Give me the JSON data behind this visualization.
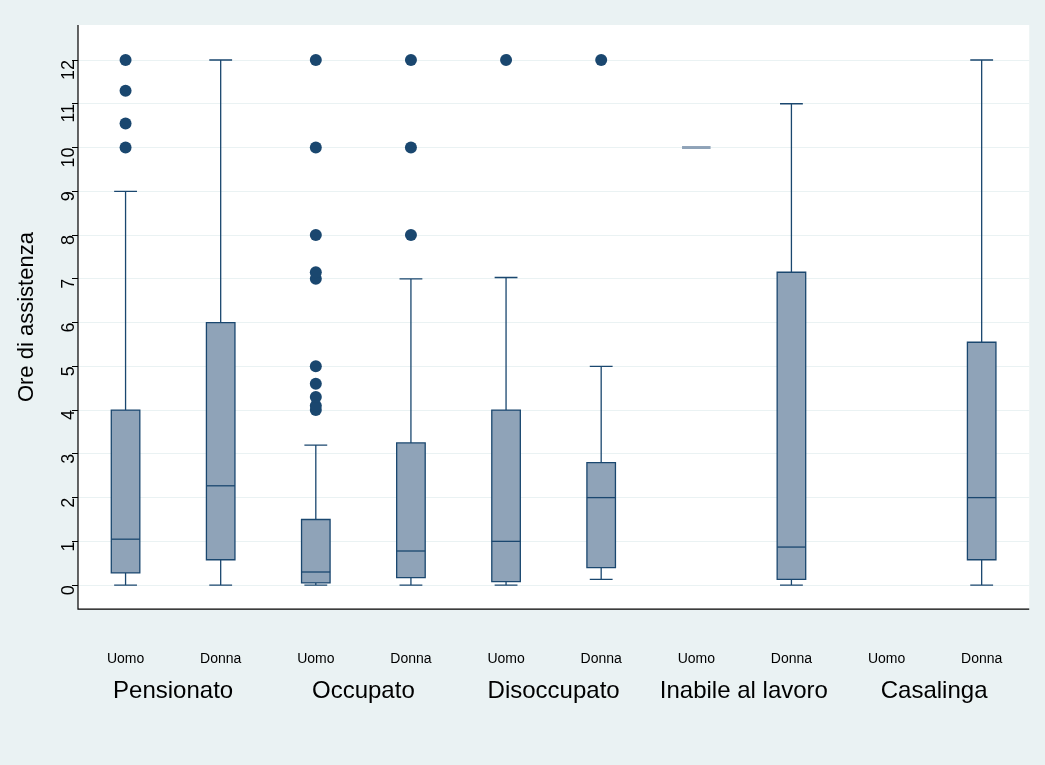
{
  "chart_data": {
    "type": "box",
    "ylabel": "Ore di assistenza",
    "categories": [
      "Uomo",
      "Donna",
      "Uomo",
      "Donna",
      "Uomo",
      "Donna",
      "Uomo",
      "Donna",
      "Uomo",
      "Donna"
    ],
    "boxes": [
      {
        "low": 0,
        "q1": 0.28,
        "median": 1.05,
        "q3": 4,
        "high": 9,
        "outliers": [
          10,
          10.55,
          11.3,
          12
        ]
      },
      {
        "low": 0,
        "q1": 0.58,
        "median": 2.27,
        "q3": 6,
        "high": 12
      },
      {
        "low": 0,
        "q1": 0.05,
        "median": 0.3,
        "q3": 1.5,
        "high": 3.2,
        "outliers": [
          4,
          4.1,
          4.3,
          4.6,
          5,
          7,
          7.15,
          8,
          10,
          12
        ]
      },
      {
        "low": 0,
        "q1": 0.17,
        "median": 0.78,
        "q3": 3.25,
        "high": 7,
        "outliers": [
          8,
          10,
          12
        ]
      },
      {
        "low": 0,
        "q1": 0.08,
        "median": 1,
        "q3": 4,
        "high": 7.03,
        "outliers": [
          12
        ]
      },
      {
        "low": 0.13,
        "q1": 0.4,
        "median": 2,
        "q3": 2.8,
        "high": 5,
        "outliers": [
          12
        ]
      },
      {
        "low": 10,
        "q1": 10,
        "median": 10,
        "q3": 10,
        "high": 10
      },
      {
        "low": 0,
        "q1": 0.13,
        "median": 0.87,
        "q3": 7.15,
        "high": 11
      },
      null,
      {
        "low": 0,
        "q1": 0.58,
        "median": 2,
        "q3": 5.55,
        "high": 12
      }
    ],
    "color": "#8fa3b8",
    "ylim": [
      -0.55,
      12.8
    ],
    "yticks": [
      0,
      1,
      2,
      3,
      4,
      5,
      6,
      7,
      8,
      9,
      10,
      11,
      12
    ],
    "grid": "y",
    "marker": "circle",
    "legend": false,
    "annotations": [
      "Pensionato",
      "Occupato",
      "Disoccupato",
      "Inabile al lavoro",
      "Casalinga"
    ]
  }
}
